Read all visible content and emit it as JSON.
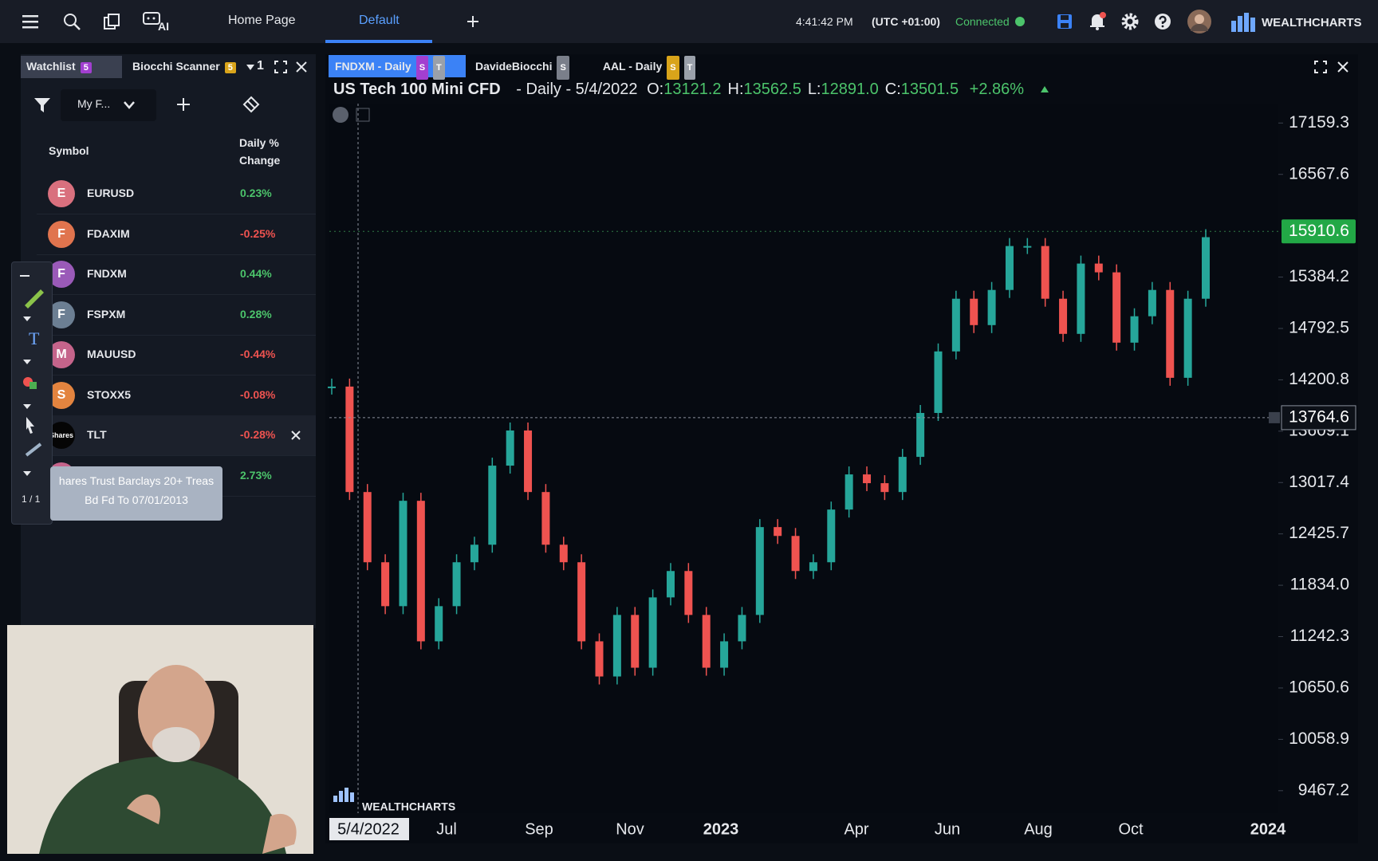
{
  "top_bar": {
    "nav": [
      "Home Page",
      "Default"
    ],
    "time": "4:41:42 PM",
    "timezone": "(UTC +01:00)",
    "status": "Connected",
    "ai": "AI",
    "brand": "WEALTHCHARTS"
  },
  "watchlist": {
    "tabs": [
      {
        "label": "Watchlist",
        "badge": "5"
      },
      {
        "label": "Biocchi Scanner",
        "badge": "5"
      }
    ],
    "tab_count": "1",
    "filter": "My F...",
    "headers": [
      "Symbol",
      "Daily % Change"
    ],
    "rows": [
      {
        "avatar": "E",
        "symbol": "EURUSD",
        "change": "0.23%",
        "color": "#d9707e"
      },
      {
        "avatar": "F",
        "symbol": "FDAXIM",
        "change": "-0.25%",
        "color": "#e0744e"
      },
      {
        "avatar": "F",
        "symbol": "FNDXM",
        "change": "0.44%",
        "color": "#9a5ab8"
      },
      {
        "avatar": "F",
        "symbol": "FSPXM",
        "change": "0.28%",
        "color": "#6c7f93"
      },
      {
        "avatar": "M",
        "symbol": "MAUUSD",
        "change": "-0.44%",
        "color": "#c5648b"
      },
      {
        "avatar": "S",
        "symbol": "STOXX5",
        "change": "-0.08%",
        "color": "#e3843f"
      },
      {
        "avatar": "Shares",
        "symbol": "TLT",
        "change": "-0.28%",
        "color": "#050505"
      },
      {
        "avatar": null,
        "symbol": null,
        "change": "2.73%",
        "color": "#c5648b"
      }
    ],
    "tooltip": [
      "hares Trust Barclays 20+ Treas",
      "Bd Fd To 07/01/2013"
    ],
    "toolbar_page": "1 / 1"
  },
  "chart_tabs": [
    {
      "label": "FNDXM - Daily",
      "badges": [
        "S",
        "T"
      ]
    },
    {
      "label": "DavideBiocchi",
      "badges": [
        "S"
      ]
    },
    {
      "label": "AAL - Daily",
      "badges": [
        "S",
        "T"
      ]
    }
  ],
  "chart_data": {
    "type": "candlestick",
    "title": "US Tech 100 Mini CFD",
    "interval": "- Daily - 5/4/2022",
    "ohlc": [
      {
        "key": "O:",
        "value": "13121.2"
      },
      {
        "key": "H:",
        "value": "13562.5"
      },
      {
        "key": "L:",
        "value": "12891.0"
      },
      {
        "key": "C:",
        "value": "13501.5"
      }
    ],
    "change": "+2.86%",
    "watermark": "WEALTHCHARTS",
    "up_color": "#26a69a",
    "down_color": "#ef5350",
    "closes": [
      14123,
      12908,
      12099,
      11593,
      12807,
      11188,
      11593,
      12099,
      12301,
      13212,
      13617,
      12908,
      12301,
      12099,
      11188,
      10783,
      11492,
      10884,
      11694,
      11998,
      11492,
      10884,
      11188,
      11492,
      12504,
      12402,
      11998,
      12099,
      12706,
      13111,
      13010,
      12908,
      13313,
      13819,
      14528,
      15135,
      14831,
      15236,
      15742,
      15742,
      15135,
      14730,
      15540,
      15439,
      14629,
      14933,
      15236,
      14224,
      15135,
      15844
    ],
    "ylim": [
      9208.2,
      17382.5
    ],
    "yticks": [
      17159.3,
      16567.6,
      15384.2,
      14792.5,
      14200.8,
      13609.1,
      13017.4,
      12425.7,
      {
        "value": 11834,
        "label": "11834.0"
      },
      11242.3,
      10650.6,
      10058.9,
      9467.2
    ],
    "xlabels": [
      "5/4/2022",
      "Jul",
      "Sep",
      "Nov",
      "2023",
      "Apr",
      "Jun",
      "Aug",
      "Oct",
      "2024"
    ],
    "last_price": 15910.6,
    "crosshair_price": 13764.6
  }
}
